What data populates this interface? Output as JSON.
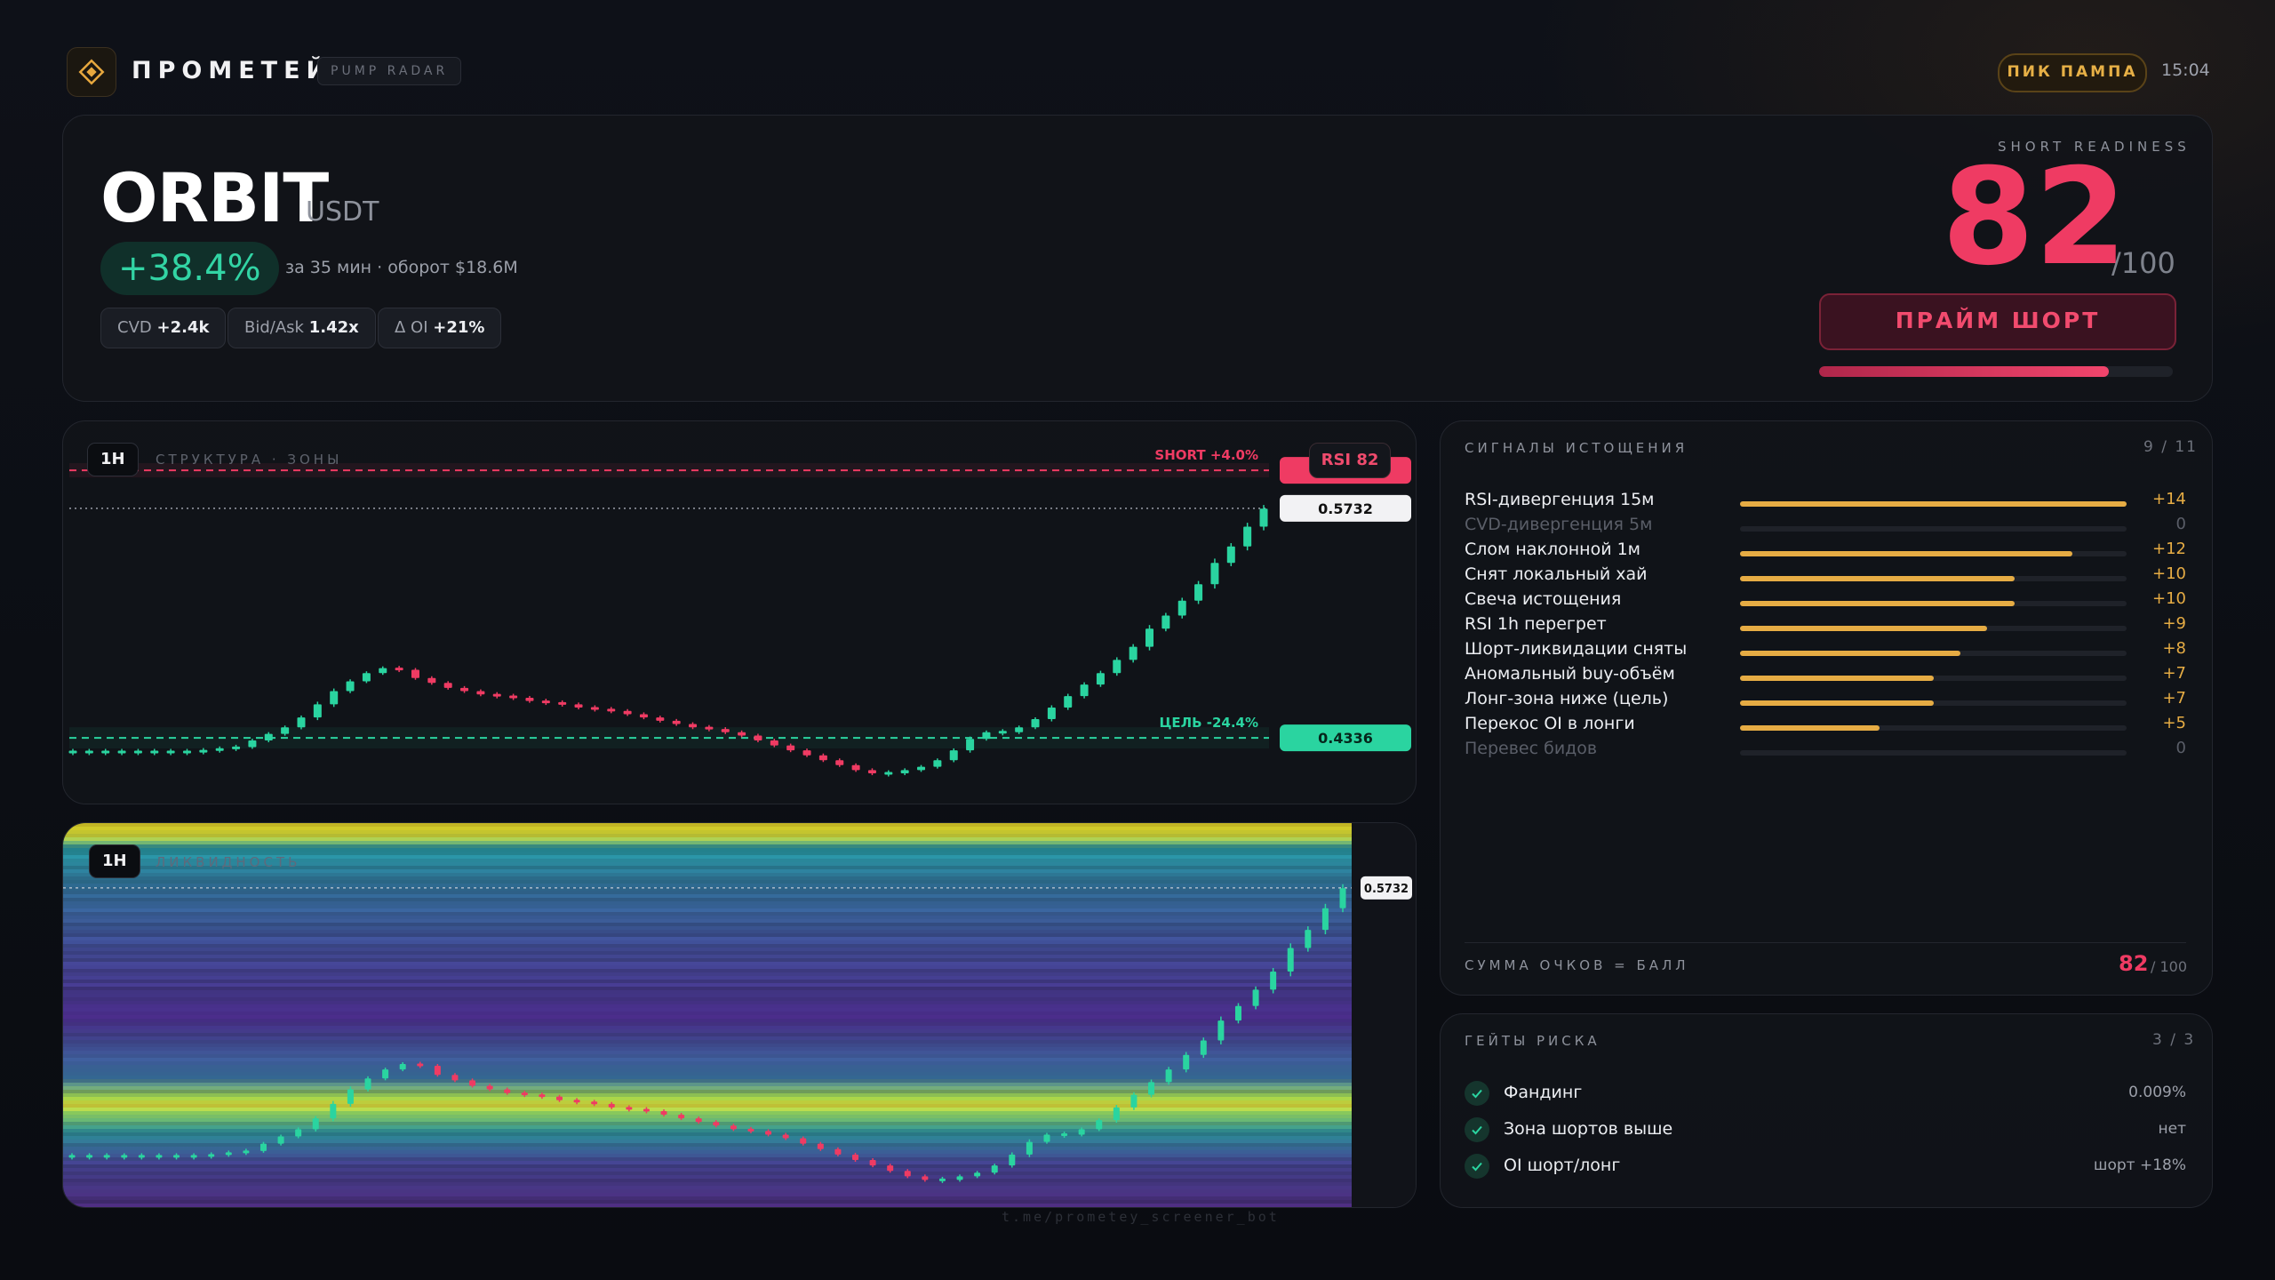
{
  "app": {
    "brand": "ПРОМЕТЕЙ",
    "module": "PUMP RADAR",
    "status_badge": "ПИК ПАМПА",
    "time": "15:04"
  },
  "hero": {
    "ticker": "ORBIT",
    "quote": "USDT",
    "change": "+38.4%",
    "description": "за 35 мин · оборот $18.6M",
    "chips": [
      {
        "label": "CVD",
        "value": "+2.4k"
      },
      {
        "label": "Bid/Ask",
        "value": "1.42x"
      },
      {
        "label": "Δ OI",
        "value": "+21%"
      }
    ],
    "readiness_label": "SHORT READINESS",
    "score": "82",
    "score_max": "/100",
    "action": "ПРАЙМ ШОРТ",
    "readiness_fraction": 0.82
  },
  "structure_chart": {
    "timeframe": "1H",
    "subtitle": "СТРУКТУРА · ЗОНЫ",
    "rsi_badge": "RSI 82",
    "short_label": "SHORT +4.0%",
    "target_label": "ЦЕЛЬ -24.4%",
    "short_price": "0.5963",
    "current_price": "0.5732",
    "target_price": "0.4336"
  },
  "liquidity_chart": {
    "timeframe": "1H",
    "subtitle": "ЛИКВИДНОСТЬ",
    "current_price": "0.5732"
  },
  "chart_data": {
    "type": "candlestick",
    "timeframe": "1H",
    "levels": {
      "short": 0.5963,
      "current": 0.5732,
      "target": 0.4336
    },
    "ylim": [
      0.405,
      0.605
    ],
    "closes": [
      0.425,
      0.425,
      0.425,
      0.425,
      0.425,
      0.425,
      0.425,
      0.425,
      0.426,
      0.427,
      0.428,
      0.432,
      0.436,
      0.44,
      0.446,
      0.454,
      0.462,
      0.468,
      0.473,
      0.476,
      0.475,
      0.47,
      0.467,
      0.464,
      0.462,
      0.46,
      0.459,
      0.458,
      0.456,
      0.455,
      0.454,
      0.452,
      0.451,
      0.45,
      0.448,
      0.446,
      0.444,
      0.442,
      0.44,
      0.439,
      0.437,
      0.435,
      0.432,
      0.429,
      0.426,
      0.423,
      0.42,
      0.417,
      0.414,
      0.412,
      0.412,
      0.414,
      0.416,
      0.42,
      0.426,
      0.433,
      0.437,
      0.437,
      0.44,
      0.445,
      0.452,
      0.459,
      0.466,
      0.473,
      0.481,
      0.489,
      0.5,
      0.508,
      0.517,
      0.527,
      0.54,
      0.55,
      0.562,
      0.573
    ]
  },
  "signals": {
    "title": "СИГНАЛЫ ИСТОЩЕНИЯ",
    "count": "9 / 11",
    "items": [
      {
        "label": "RSI-дивергенция 15м",
        "value": "+14",
        "fraction": 1.0,
        "active": true
      },
      {
        "label": "CVD-дивергенция 5м",
        "value": "0",
        "fraction": 0,
        "active": false
      },
      {
        "label": "Слом наклонной 1м",
        "value": "+12",
        "fraction": 0.86,
        "active": true
      },
      {
        "label": "Снят локальный хай",
        "value": "+10",
        "fraction": 0.71,
        "active": true
      },
      {
        "label": "Свеча истощения",
        "value": "+10",
        "fraction": 0.71,
        "active": true
      },
      {
        "label": "RSI 1h перегрет",
        "value": "+9",
        "fraction": 0.64,
        "active": true
      },
      {
        "label": "Шорт-ликвидации сняты",
        "value": "+8",
        "fraction": 0.57,
        "active": true
      },
      {
        "label": "Аномальный buy-объём",
        "value": "+7",
        "fraction": 0.5,
        "active": true
      },
      {
        "label": "Лонг-зона ниже (цель)",
        "value": "+7",
        "fraction": 0.5,
        "active": true
      },
      {
        "label": "Перекос OI в лонги",
        "value": "+5",
        "fraction": 0.36,
        "active": true
      },
      {
        "label": "Перевес бидов",
        "value": "0",
        "fraction": 0,
        "active": false
      }
    ],
    "sum_label": "СУММА ОЧКОВ = БАЛЛ",
    "sum_value": "82",
    "sum_max": "/ 100"
  },
  "gates": {
    "title": "ГЕЙТЫ РИСКА",
    "count": "3 / 3",
    "items": [
      {
        "label": "Фандинг",
        "value": "0.009%"
      },
      {
        "label": "Зона шортов выше",
        "value": "нет"
      },
      {
        "label": "OI шорт/лонг",
        "value": "шорт +18%"
      }
    ]
  },
  "footer": {
    "watermark": "t.me/prometey_screener_bot"
  },
  "colors": {
    "up": "#2ad4a0",
    "down": "#ef3b63",
    "accent": "#e6ac44",
    "short_level": "#ef3b63",
    "target_level": "#2ad4a0"
  }
}
